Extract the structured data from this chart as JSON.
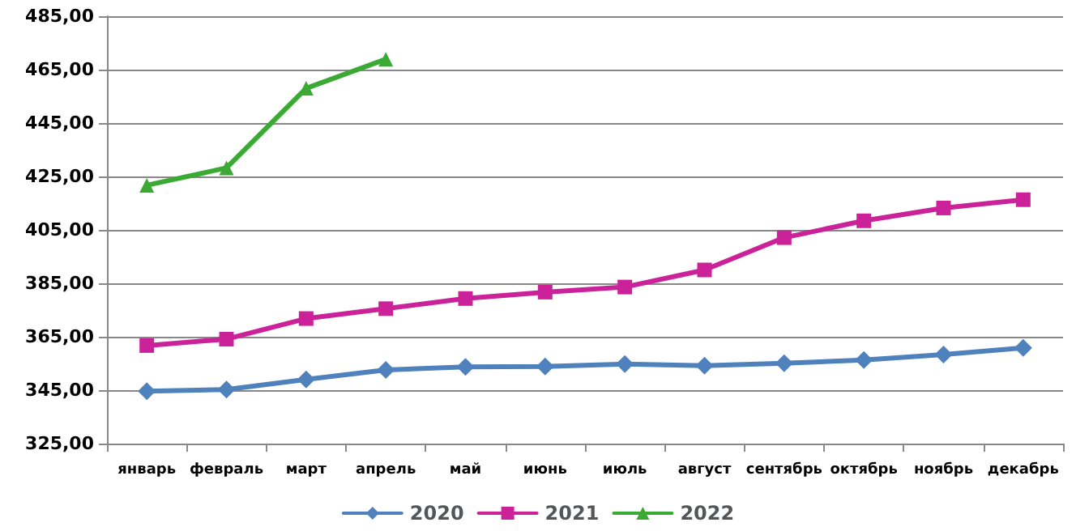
{
  "chart_data": {
    "type": "line",
    "categories": [
      "январь",
      "февраль",
      "март",
      "апрель",
      "май",
      "июнь",
      "июль",
      "август",
      "сентябрь",
      "октябрь",
      "ноябрь",
      "декабрь"
    ],
    "series": [
      {
        "name": "2020",
        "color": "#4f81bd",
        "marker": "diamond",
        "values": [
          344.6,
          345.2,
          349.0,
          352.6,
          353.7,
          353.9,
          354.8,
          354.2,
          355.1,
          356.3,
          358.3,
          360.8
        ]
      },
      {
        "name": "2021",
        "color": "#cc2299",
        "marker": "square",
        "values": [
          361.7,
          364.1,
          371.8,
          375.5,
          379.3,
          381.7,
          383.6,
          390.0,
          402.1,
          408.4,
          413.2,
          416.3
        ]
      },
      {
        "name": "2022",
        "color": "#3aaa35",
        "marker": "triangle",
        "values": [
          421.7,
          428.2,
          458.0,
          468.9,
          null,
          null,
          null,
          null,
          null,
          null,
          null,
          null
        ]
      }
    ],
    "ylim": [
      325,
      485
    ],
    "yticks": [
      {
        "value": 325,
        "label": "325,00"
      },
      {
        "value": 345,
        "label": "345,00"
      },
      {
        "value": 365,
        "label": "365,00"
      },
      {
        "value": 385,
        "label": "385,00"
      },
      {
        "value": 405,
        "label": "405,00"
      },
      {
        "value": 425,
        "label": "425,00"
      },
      {
        "value": 445,
        "label": "445,00"
      },
      {
        "value": 465,
        "label": "465,00"
      },
      {
        "value": 485,
        "label": "485,00"
      }
    ],
    "grid": "y",
    "legend": "bottom",
    "line_style": "solid"
  }
}
